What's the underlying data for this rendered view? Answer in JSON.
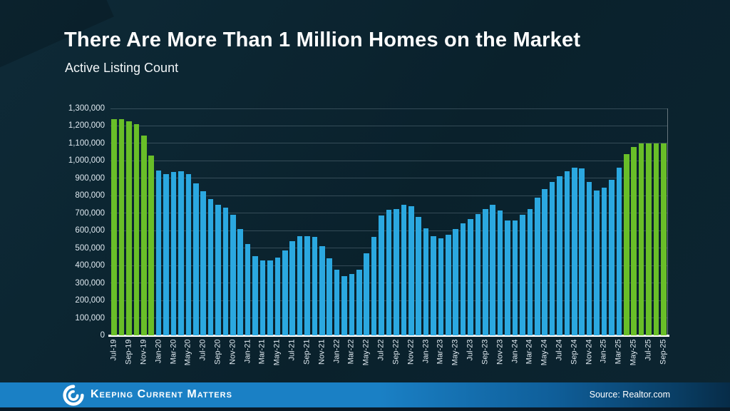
{
  "slide": {
    "title": "There Are More Than 1 Million Homes on the Market",
    "subtitle": "Active Listing Count",
    "source_label": "Source: Realtor.com",
    "brand_name": "Keeping Current Matters",
    "colors": {
      "background": "#0B2330",
      "bar_blue": "#2BA8E0",
      "bar_green": "#69BE28",
      "footer_blue": "#1A80C5",
      "axis_text": "#DFE9F0",
      "title_text": "#FFFFFF"
    }
  },
  "chart_data": {
    "type": "bar",
    "title": "There Are More Than 1 Million Homes on the Market",
    "subtitle": "Active Listing Count",
    "ylabel": "Active Listing Count",
    "xlabel": "",
    "ylim": [
      0,
      1300000
    ],
    "ytick_step": 100000,
    "y_ticks": [
      "0",
      "100,000",
      "200,000",
      "300,000",
      "400,000",
      "500,000",
      "600,000",
      "700,000",
      "800,000",
      "900,000",
      "1,000,000",
      "1,100,000",
      "1,200,000",
      "1,300,000"
    ],
    "grid": true,
    "legend": "none",
    "xtick_every": 2,
    "bar_color": "#2BA8E0",
    "highlight_color": "#69BE28",
    "highlight_indices": [
      0,
      1,
      2,
      3,
      4,
      5,
      69,
      70,
      71,
      72,
      73,
      74
    ],
    "categories": [
      "Jul-19",
      "Aug-19",
      "Sep-19",
      "Oct-19",
      "Nov-19",
      "Dec-19",
      "Jan-20",
      "Feb-20",
      "Mar-20",
      "Apr-20",
      "May-20",
      "Jun-20",
      "Jul-20",
      "Aug-20",
      "Sep-20",
      "Oct-20",
      "Nov-20",
      "Dec-20",
      "Jan-21",
      "Feb-21",
      "Mar-21",
      "Apr-21",
      "May-21",
      "Jun-21",
      "Jul-21",
      "Aug-21",
      "Sep-21",
      "Oct-21",
      "Nov-21",
      "Dec-21",
      "Jan-22",
      "Feb-22",
      "Mar-22",
      "Apr-22",
      "May-22",
      "Jun-22",
      "Jul-22",
      "Aug-22",
      "Sep-22",
      "Oct-22",
      "Nov-22",
      "Dec-22",
      "Jan-23",
      "Feb-23",
      "Mar-23",
      "Apr-23",
      "May-23",
      "Jun-23",
      "Jul-23",
      "Aug-23",
      "Sep-23",
      "Oct-23",
      "Nov-23",
      "Dec-23",
      "Jan-24",
      "Feb-24",
      "Mar-24",
      "Apr-24",
      "May-24",
      "Jun-24",
      "Jul-24",
      "Aug-24",
      "Sep-24",
      "Oct-24",
      "Nov-24",
      "Dec-24",
      "Jan-25",
      "Feb-25",
      "Mar-25",
      "Apr-25",
      "May-25",
      "Jun-25",
      "Jul-25",
      "Aug-25",
      "Sep-25"
    ],
    "values": [
      1240000,
      1240000,
      1225000,
      1210000,
      1145000,
      1030000,
      945000,
      925000,
      935000,
      940000,
      925000,
      870000,
      825000,
      780000,
      750000,
      730000,
      690000,
      610000,
      525000,
      455000,
      430000,
      430000,
      445000,
      485000,
      540000,
      570000,
      570000,
      565000,
      510000,
      440000,
      375000,
      340000,
      350000,
      375000,
      470000,
      565000,
      685000,
      720000,
      725000,
      750000,
      740000,
      680000,
      615000,
      570000,
      555000,
      575000,
      610000,
      640000,
      665000,
      695000,
      725000,
      750000,
      715000,
      660000,
      660000,
      690000,
      725000,
      790000,
      840000,
      880000,
      910000,
      940000,
      960000,
      955000,
      880000,
      830000,
      845000,
      890000,
      960000,
      1040000,
      1080000,
      1100000,
      1100000,
      1100000,
      1100000
    ]
  }
}
